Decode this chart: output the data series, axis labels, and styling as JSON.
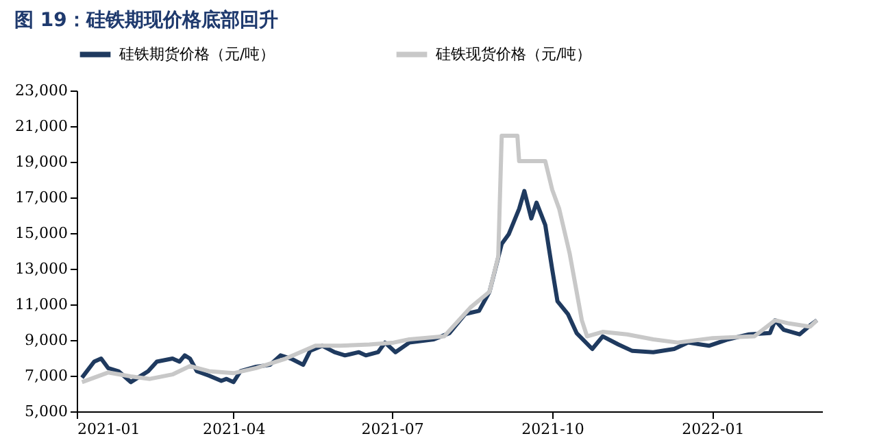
{
  "chart_data": {
    "type": "line",
    "title": "图 19：硅铁期现价格底部回升",
    "xlim": [
      "2021-01-01",
      "2022-03-05"
    ],
    "xticks": [
      "2021-01",
      "2021-04",
      "2021-07",
      "2021-10",
      "2022-01"
    ],
    "ylim": [
      5000,
      23000
    ],
    "yticks": [
      {
        "value": 5000,
        "label": "5,000"
      },
      {
        "value": 7000,
        "label": "7,000"
      },
      {
        "value": 9000,
        "label": "9,000"
      },
      {
        "value": 11000,
        "label": "11,000"
      },
      {
        "value": 13000,
        "label": "13,000"
      },
      {
        "value": 15000,
        "label": "15,000"
      },
      {
        "value": 17000,
        "label": "17,000"
      },
      {
        "value": 19000,
        "label": "19,000"
      },
      {
        "value": 21000,
        "label": "21,000"
      },
      {
        "value": 23000,
        "label": "23,000"
      }
    ],
    "grid": false,
    "legend": "top",
    "line_style": "solid",
    "marker": "none",
    "series": [
      {
        "name": "硅铁期货价格（元/吨）",
        "color": "#1f3a5f",
        "x": [
          "2021-01-04",
          "2021-01-11",
          "2021-01-15",
          "2021-01-19",
          "2021-01-25",
          "2021-02-01",
          "2021-02-11",
          "2021-02-16",
          "2021-02-25",
          "2021-03-01",
          "2021-03-04",
          "2021-03-07",
          "2021-03-11",
          "2021-03-18",
          "2021-03-25",
          "2021-03-28",
          "2021-04-01",
          "2021-04-05",
          "2021-04-14",
          "2021-04-22",
          "2021-04-28",
          "2021-05-04",
          "2021-05-11",
          "2021-05-15",
          "2021-05-22",
          "2021-05-29",
          "2021-06-04",
          "2021-06-12",
          "2021-06-16",
          "2021-06-23",
          "2021-06-27",
          "2021-07-03",
          "2021-07-11",
          "2021-07-25",
          "2021-08-03",
          "2021-08-12",
          "2021-08-20",
          "2021-08-26",
          "2021-09-02",
          "2021-09-06",
          "2021-09-12",
          "2021-09-15",
          "2021-09-19",
          "2021-09-22",
          "2021-09-27",
          "2021-10-01",
          "2021-10-04",
          "2021-10-10",
          "2021-10-15",
          "2021-10-24",
          "2021-10-30",
          "2021-11-08",
          "2021-11-16",
          "2021-11-28",
          "2021-12-10",
          "2021-12-18",
          "2021-12-30",
          "2022-01-10",
          "2022-01-22",
          "2022-02-03",
          "2022-02-06",
          "2022-02-11",
          "2022-02-20",
          "2022-02-26",
          "2022-03-02"
        ],
        "values": [
          6890,
          7790,
          7960,
          7430,
          7250,
          6640,
          7250,
          7790,
          7960,
          7790,
          8140,
          7960,
          7250,
          7000,
          6710,
          6820,
          6640,
          7250,
          7500,
          7610,
          8140,
          7960,
          7610,
          8390,
          8680,
          8320,
          8140,
          8320,
          8140,
          8320,
          8860,
          8320,
          8860,
          9040,
          9390,
          10460,
          10640,
          11710,
          14390,
          14930,
          16360,
          17360,
          15820,
          16710,
          15460,
          12960,
          11180,
          10460,
          9390,
          8500,
          9210,
          8750,
          8390,
          8320,
          8500,
          8860,
          8680,
          9040,
          9320,
          9390,
          10110,
          9570,
          9320,
          9820,
          10110
        ]
      },
      {
        "name": "硅铁现货价格（元/吨）",
        "color": "#c8c8c8",
        "x": [
          "2021-01-04",
          "2021-01-19",
          "2021-02-01",
          "2021-02-12",
          "2021-02-25",
          "2021-03-07",
          "2021-03-18",
          "2021-04-01",
          "2021-04-14",
          "2021-05-01",
          "2021-05-18",
          "2021-06-01",
          "2021-06-18",
          "2021-07-02",
          "2021-07-11",
          "2021-07-31",
          "2021-08-15",
          "2021-08-26",
          "2021-08-31",
          "2021-09-02",
          "2021-09-11",
          "2021-09-12",
          "2021-09-27",
          "2021-10-01",
          "2021-10-05",
          "2021-10-11",
          "2021-10-18",
          "2021-10-21",
          "2021-10-30",
          "2021-11-13",
          "2021-11-28",
          "2021-12-12",
          "2022-01-01",
          "2022-01-25",
          "2022-02-06",
          "2022-02-14",
          "2022-02-26",
          "2022-03-02"
        ],
        "values": [
          6640,
          7180,
          6960,
          6820,
          7070,
          7540,
          7250,
          7140,
          7430,
          7960,
          8680,
          8680,
          8750,
          8860,
          9040,
          9210,
          10820,
          11710,
          13680,
          20460,
          20460,
          19040,
          19040,
          17430,
          16360,
          13860,
          10110,
          9210,
          9460,
          9320,
          9040,
          8860,
          9110,
          9210,
          10110,
          9930,
          9750,
          10110
        ]
      }
    ]
  }
}
